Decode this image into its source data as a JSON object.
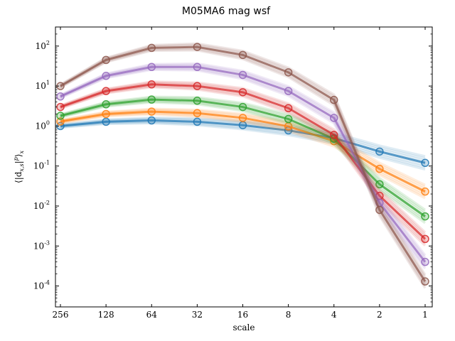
{
  "chart_data": {
    "type": "line",
    "title": "M05MA6 mag wsf",
    "xlabel": "scale",
    "ylabel": "⟨|d_{x,s}|^p⟩_x",
    "x": [
      256,
      128,
      64,
      32,
      16,
      8,
      4,
      2,
      1
    ],
    "x_tick_labels": [
      "256",
      "128",
      "64",
      "32",
      "16",
      "8",
      "4",
      "2",
      "1"
    ],
    "x_scale": "log2-reversed",
    "y_scale": "log",
    "ylim": [
      3e-05,
      300
    ],
    "y_ticks": [
      {
        "exp": "-4"
      },
      {
        "exp": "-3"
      },
      {
        "exp": "-2"
      },
      {
        "exp": "-1"
      },
      {
        "exp": "0"
      },
      {
        "exp": "1"
      },
      {
        "exp": "2"
      }
    ],
    "legend": "none",
    "grid": false,
    "series": [
      {
        "color": "#1f77b4",
        "values": [
          1.0,
          1.28,
          1.38,
          1.28,
          1.05,
          0.78,
          0.5,
          0.23,
          0.12
        ]
      },
      {
        "color": "#ff7f0e",
        "values": [
          1.3,
          2.0,
          2.3,
          2.1,
          1.6,
          0.98,
          0.42,
          0.085,
          0.023
        ]
      },
      {
        "color": "#2ca02c",
        "values": [
          1.8,
          3.5,
          4.6,
          4.3,
          3.0,
          1.5,
          0.48,
          0.035,
          0.0055
        ]
      },
      {
        "color": "#d62728",
        "values": [
          3.0,
          7.5,
          11.0,
          10.0,
          7.0,
          2.8,
          0.6,
          0.018,
          0.0015
        ]
      },
      {
        "color": "#9467bd",
        "values": [
          5.5,
          18,
          30,
          30,
          19,
          7.5,
          1.6,
          0.012,
          0.0004
        ]
      },
      {
        "color": "#8c564b",
        "values": [
          10,
          45,
          90,
          95,
          60,
          22,
          4.5,
          0.008,
          0.00013
        ]
      }
    ]
  }
}
